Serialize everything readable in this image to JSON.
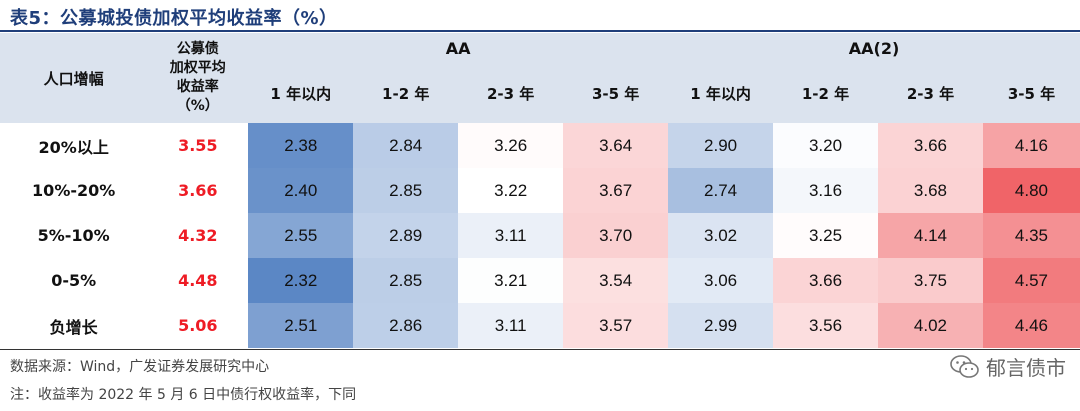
{
  "title": "表5：公募城投债加权平均收益率（%）",
  "header": {
    "population_label": "人口增幅",
    "yield_label_lines": [
      "公募债",
      "加权平均",
      "收益率",
      "（%）"
    ],
    "groups": [
      "AA",
      "AA(2)"
    ],
    "terms": [
      "1 年以内",
      "1-2 年",
      "2-3 年",
      "3-5 年",
      "1 年以内",
      "1-2 年",
      "2-3 年",
      "3-5 年"
    ]
  },
  "rows": [
    {
      "label": "20%以上",
      "yield": "3.55",
      "values": [
        "2.38",
        "2.84",
        "3.26",
        "3.64",
        "2.90",
        "3.20",
        "3.66",
        "4.16"
      ]
    },
    {
      "label": "10%-20%",
      "yield": "3.66",
      "values": [
        "2.40",
        "2.85",
        "3.22",
        "3.67",
        "2.74",
        "3.16",
        "3.68",
        "4.80"
      ]
    },
    {
      "label": "5%-10%",
      "yield": "4.32",
      "values": [
        "2.55",
        "2.89",
        "3.11",
        "3.70",
        "3.02",
        "3.25",
        "4.14",
        "4.35"
      ]
    },
    {
      "label": "0-5%",
      "yield": "4.48",
      "values": [
        "2.32",
        "2.85",
        "3.21",
        "3.54",
        "3.06",
        "3.66",
        "3.75",
        "4.57"
      ]
    },
    {
      "label": "负增长",
      "yield": "5.06",
      "values": [
        "2.51",
        "2.86",
        "3.11",
        "3.57",
        "2.99",
        "3.56",
        "4.02",
        "4.46"
      ]
    }
  ],
  "footer": {
    "source": "数据来源：Wind，广发证券发展研究中心",
    "note": "注：收益率为 2022 年 5 月 6 日中债行权收益率，下同",
    "watermark": "郁言债市",
    "watermark_icon": "wechat-icon"
  },
  "colors": {
    "title": "#1f3e7a",
    "header_bg": "#dbe3ee",
    "yield_text": "#ee1c25",
    "scale_low": "#5b87c5",
    "scale_mid": "#ffffff",
    "scale_high": "#f06468"
  }
}
